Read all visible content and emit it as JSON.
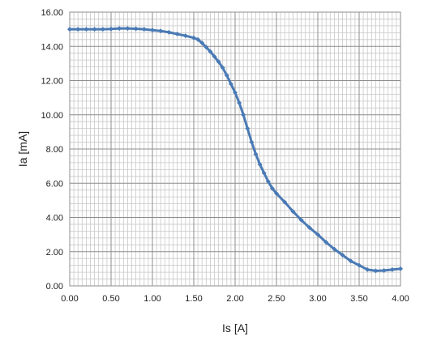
{
  "chart_data": {
    "type": "line",
    "xlabel": "Is [A]",
    "ylabel": "Ia [mA]",
    "xlim": [
      0,
      4
    ],
    "ylim": [
      0,
      16
    ],
    "x_ticks": [
      "0.00",
      "0.50",
      "1.00",
      "1.50",
      "2.00",
      "2.50",
      "3.00",
      "3.50",
      "4.00"
    ],
    "y_ticks": [
      "0.00",
      "2.00",
      "4.00",
      "6.00",
      "8.00",
      "10.00",
      "12.00",
      "14.00",
      "16.00"
    ],
    "grid": "on",
    "legend": "none",
    "series": [
      {
        "color": "#4a7ab5",
        "x": [
          0.0,
          0.1,
          0.2,
          0.3,
          0.4,
          0.5,
          0.6,
          0.7,
          0.8,
          0.9,
          1.0,
          1.1,
          1.2,
          1.3,
          1.4,
          1.5,
          1.55,
          1.6,
          1.65,
          1.7,
          1.75,
          1.8,
          1.85,
          1.9,
          1.95,
          2.0,
          2.05,
          2.1,
          2.15,
          2.2,
          2.25,
          2.3,
          2.35,
          2.4,
          2.45,
          2.5,
          2.6,
          2.7,
          2.8,
          2.9,
          3.0,
          3.1,
          3.2,
          3.3,
          3.4,
          3.5,
          3.6,
          3.7,
          3.8,
          3.9,
          4.0
        ],
        "y": [
          15.0,
          15.0,
          15.0,
          15.0,
          15.0,
          15.02,
          15.05,
          15.05,
          15.03,
          15.0,
          14.95,
          14.9,
          14.82,
          14.72,
          14.62,
          14.5,
          14.4,
          14.2,
          13.95,
          13.7,
          13.4,
          13.1,
          12.75,
          12.3,
          11.8,
          11.3,
          10.7,
          10.0,
          9.2,
          8.4,
          7.7,
          7.1,
          6.6,
          6.1,
          5.7,
          5.4,
          4.9,
          4.35,
          3.85,
          3.4,
          3.0,
          2.55,
          2.15,
          1.8,
          1.45,
          1.2,
          0.95,
          0.88,
          0.9,
          0.95,
          1.0
        ]
      }
    ]
  }
}
